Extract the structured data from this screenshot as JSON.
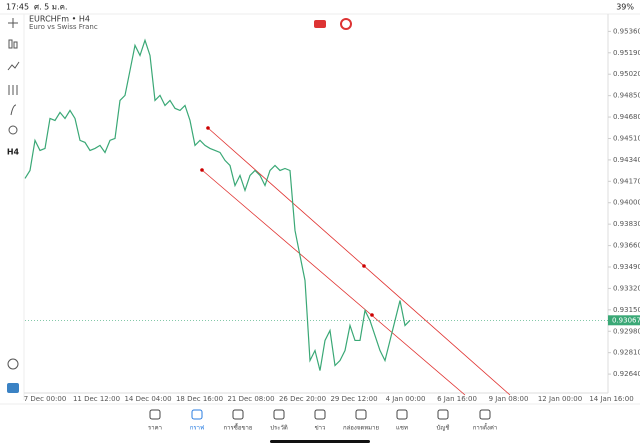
{
  "status": {
    "time": "17:45",
    "date": "ศ. 5 ม.ค.",
    "battery": "39%"
  },
  "toolbar": {
    "timeframe": "H4"
  },
  "chart_data": {
    "type": "line",
    "title": "EURCHFm • H4",
    "subtitle": "Euro vs Swiss Franc",
    "color": "#3aa876",
    "values": [
      0.94193,
      0.94256,
      0.94495,
      0.94415,
      0.94431,
      0.94669,
      0.94653,
      0.94717,
      0.94669,
      0.94733,
      0.94669,
      0.94495,
      0.94479,
      0.94415,
      0.94431,
      0.94455,
      0.94399,
      0.94495,
      0.9451,
      0.94812,
      0.94852,
      0.9505,
      0.95249,
      0.95169,
      0.95289,
      0.95169,
      0.94812,
      0.94852,
      0.94772,
      0.94812,
      0.94749,
      0.94733,
      0.94772,
      0.94653,
      0.94455,
      0.94495,
      0.94455,
      0.94431,
      0.94415,
      0.94399,
      0.94336,
      0.94296,
      0.94137,
      0.94217,
      0.94098,
      0.94217,
      0.94256,
      0.94217,
      0.94137,
      0.94256,
      0.94296,
      0.94256,
      0.94272,
      0.94256,
      0.9378,
      0.9358,
      0.93383,
      0.92748,
      0.92827,
      0.92668,
      0.92907,
      0.92986,
      0.92708,
      0.92748,
      0.92827,
      0.93026,
      0.92907,
      0.92907,
      0.93145,
      0.93065,
      0.92946,
      0.92827,
      0.92748,
      0.92907,
      0.93065,
      0.93224,
      0.93026,
      0.93067
    ],
    "ylim": [
      0.9249,
      0.9549
    ],
    "yticks": [
      {
        "value": 0.9536,
        "label": "0.95360"
      },
      {
        "value": 0.9519,
        "label": "0.95190"
      },
      {
        "value": 0.9502,
        "label": "0.95020"
      },
      {
        "value": 0.9485,
        "label": "0.94850"
      },
      {
        "value": 0.9468,
        "label": "0.94680"
      },
      {
        "value": 0.9451,
        "label": "0.94510"
      },
      {
        "value": 0.9434,
        "label": "0.94340"
      },
      {
        "value": 0.9417,
        "label": "0.94170"
      },
      {
        "value": 0.94,
        "label": "0.94000"
      },
      {
        "value": 0.9383,
        "label": "0.93830"
      },
      {
        "value": 0.9366,
        "label": "0.93660"
      },
      {
        "value": 0.9349,
        "label": "0.93490"
      },
      {
        "value": 0.9332,
        "label": "0.93320"
      },
      {
        "value": 0.9315,
        "label": "0.93150"
      },
      {
        "value": 0.9298,
        "label": "0.92980"
      },
      {
        "value": 0.9281,
        "label": "0.92810"
      },
      {
        "value": 0.9264,
        "label": "0.92640"
      }
    ],
    "current_price": {
      "value": 0.93067,
      "label": "0.93067"
    },
    "xlabels": [
      "7 Dec 00:00",
      "11 Dec 12:00",
      "14 Dec 04:00",
      "18 Dec 16:00",
      "21 Dec 08:00",
      "26 Dec 20:00",
      "29 Dec 12:00",
      "4 Jan 00:00",
      "6 Jan 16:00",
      "9 Jan 08:00",
      "12 Jan 00:00",
      "14 Jan 16:00"
    ]
  },
  "nav": [
    "ราคา",
    "กราฟ",
    "การซื้อขาย",
    "ประวัติ",
    "ข่าว",
    "กล่องจดหมาย",
    "แชท",
    "บัญชี",
    "การตั้งค่า"
  ]
}
